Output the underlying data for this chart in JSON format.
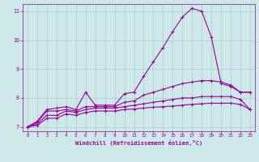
{
  "title": "",
  "xlabel": "Windchill (Refroidissement éolien,°C)",
  "ylabel": "",
  "bg_color": "#cce8e8",
  "grid_color": "#aacccc",
  "line_color": "#990099",
  "xlim": [
    -0.5,
    23.5
  ],
  "ylim": [
    6.85,
    11.25
  ],
  "xticks": [
    0,
    1,
    2,
    3,
    4,
    5,
    6,
    7,
    8,
    9,
    10,
    11,
    12,
    13,
    14,
    15,
    16,
    17,
    18,
    19,
    20,
    21,
    22,
    23
  ],
  "yticks": [
    7,
    8,
    9,
    10,
    11
  ],
  "series": [
    [
      7.0,
      7.2,
      7.6,
      7.65,
      7.7,
      7.6,
      8.2,
      7.75,
      7.75,
      7.75,
      8.15,
      8.2,
      8.75,
      9.25,
      9.75,
      10.3,
      10.8,
      11.1,
      11.0,
      10.1,
      8.5,
      8.4,
      8.2,
      8.2
    ],
    [
      7.0,
      7.15,
      7.55,
      7.55,
      7.6,
      7.55,
      7.7,
      7.7,
      7.7,
      7.7,
      7.85,
      7.9,
      8.1,
      8.2,
      8.3,
      8.4,
      8.5,
      8.55,
      8.6,
      8.6,
      8.55,
      8.45,
      8.2,
      8.2
    ],
    [
      7.0,
      7.1,
      7.4,
      7.4,
      7.55,
      7.5,
      7.6,
      7.65,
      7.65,
      7.65,
      7.7,
      7.75,
      7.8,
      7.85,
      7.9,
      7.95,
      8.0,
      8.0,
      8.05,
      8.05,
      8.05,
      8.05,
      7.95,
      7.6
    ],
    [
      7.0,
      7.05,
      7.3,
      7.3,
      7.45,
      7.4,
      7.5,
      7.55,
      7.55,
      7.55,
      7.6,
      7.62,
      7.65,
      7.68,
      7.7,
      7.72,
      7.75,
      7.78,
      7.8,
      7.82,
      7.82,
      7.82,
      7.78,
      7.6
    ]
  ]
}
